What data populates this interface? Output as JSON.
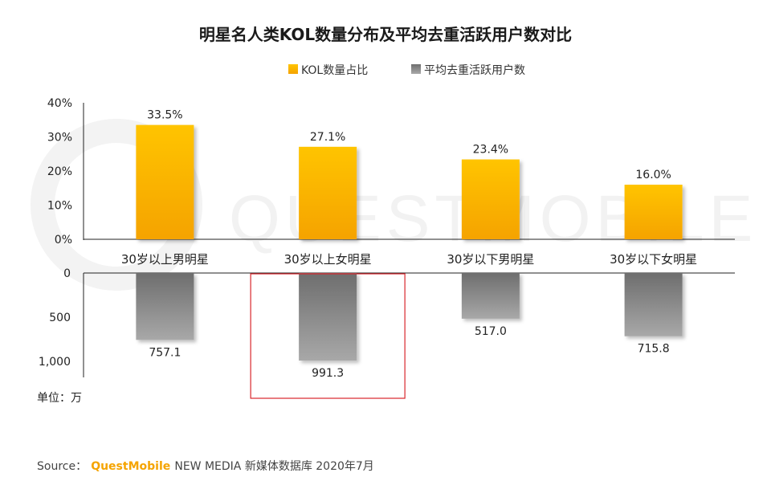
{
  "chart_data": {
    "type": "bar",
    "title": "明星名人类KOL数量分布及平均去重活跃用户数对比",
    "categories": [
      "30岁以上男明星",
      "30岁以上女明星",
      "30岁以下男明星",
      "30岁以下女明星"
    ],
    "series": [
      {
        "name": "KOL数量占比",
        "values": [
          33.5,
          27.1,
          23.4,
          16.0
        ],
        "labels": [
          "33.5%",
          "27.1%",
          "23.4%",
          "16.0%"
        ],
        "ylim": [
          0,
          40
        ],
        "ticks": [
          "0%",
          "10%",
          "20%",
          "30%",
          "40%"
        ],
        "color_top": "#ffc400",
        "color_bottom": "#f5a300"
      },
      {
        "name": "平均去重活跃用户数",
        "values": [
          757.1,
          991.3,
          517.0,
          715.8
        ],
        "labels": [
          "757.1",
          "991.3",
          "517.0",
          "715.8"
        ],
        "ylim": [
          0,
          1000
        ],
        "ticks": [
          "0",
          "500",
          "1,000"
        ],
        "inverted": true,
        "color_top": "#6e6e6e",
        "color_bottom": "#a8a8a8"
      }
    ],
    "unit_label": "单位：万",
    "highlight_category": "30岁以上女明星",
    "highlight_color": "#d9262c",
    "legend_position": "top"
  },
  "footer": {
    "source_prefix": "Source：",
    "brand": "QuestMobile",
    "source_rest": "NEW MEDIA 新媒体数据库 2020年7月"
  },
  "watermark": "QUESTMOBILE"
}
